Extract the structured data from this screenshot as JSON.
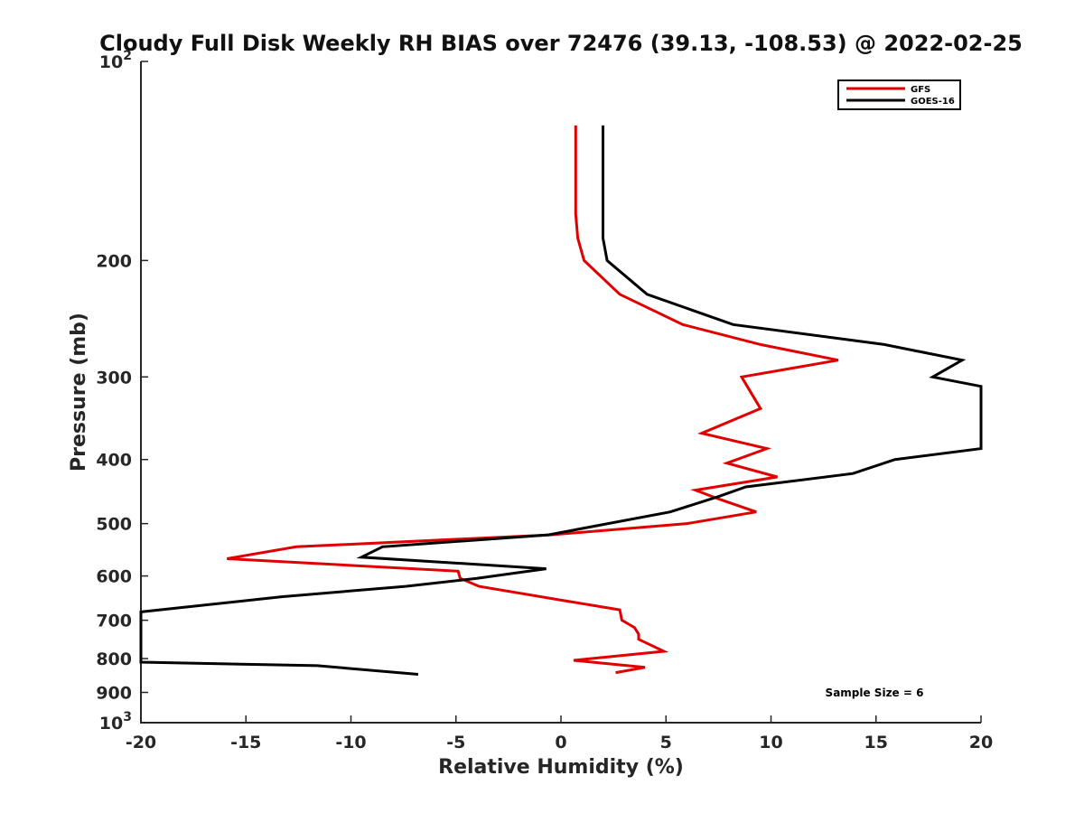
{
  "chart_data": {
    "type": "line",
    "title": "Cloudy Full Disk Weekly RH BIAS over 72476 (39.13, -108.53) @ 2022-02-25",
    "xlabel": "Relative Humidity (%)",
    "ylabel": "Pressure (mb)",
    "xlim": [
      -20,
      20
    ],
    "ylim": [
      100,
      1000
    ],
    "yscale": "log",
    "y_reversed": true,
    "grid": false,
    "legend_position": "top-right",
    "x_ticks": [
      "-20",
      "-15",
      "-10",
      "-5",
      "0",
      "5",
      "10",
      "15",
      "20"
    ],
    "y_ticks": [
      {
        "value": 100,
        "label": "10",
        "sup": "2"
      },
      {
        "value": 200,
        "label": "200"
      },
      {
        "value": 300,
        "label": "300"
      },
      {
        "value": 400,
        "label": "400"
      },
      {
        "value": 500,
        "label": "500"
      },
      {
        "value": 600,
        "label": "600"
      },
      {
        "value": 700,
        "label": "700"
      },
      {
        "value": 800,
        "label": "800"
      },
      {
        "value": 900,
        "label": "900"
      },
      {
        "value": 1000,
        "label": "10",
        "sup": "3"
      }
    ],
    "series": [
      {
        "name": "GFS",
        "color": "#e00000",
        "points": [
          [
            0.7,
            125
          ],
          [
            0.7,
            150
          ],
          [
            0.7,
            170
          ],
          [
            0.8,
            185
          ],
          [
            1.1,
            200
          ],
          [
            2.8,
            225
          ],
          [
            5.8,
            250
          ],
          [
            9.5,
            268
          ],
          [
            13.2,
            283
          ],
          [
            8.6,
            300
          ],
          [
            9.5,
            335
          ],
          [
            6.7,
            365
          ],
          [
            9.8,
            385
          ],
          [
            7.9,
            405
          ],
          [
            10.3,
            425
          ],
          [
            6.4,
            445
          ],
          [
            7.6,
            460
          ],
          [
            9.3,
            480
          ],
          [
            6.0,
            500
          ],
          [
            -0.5,
            520
          ],
          [
            -12.6,
            542
          ],
          [
            -15.9,
            565
          ],
          [
            -4.9,
            590
          ],
          [
            -4.8,
            605
          ],
          [
            -3.9,
            622
          ],
          [
            0.3,
            655
          ],
          [
            2.8,
            675
          ],
          [
            2.9,
            700
          ],
          [
            3.5,
            718
          ],
          [
            3.7,
            735
          ],
          [
            3.7,
            748
          ],
          [
            4.9,
            780
          ],
          [
            0.6,
            805
          ],
          [
            4.0,
            825
          ],
          [
            2.6,
            840
          ]
        ]
      },
      {
        "name": "GOES-16",
        "color": "#000000",
        "points": [
          [
            2.0,
            125
          ],
          [
            2.0,
            150
          ],
          [
            2.0,
            185
          ],
          [
            2.2,
            200
          ],
          [
            4.1,
            225
          ],
          [
            8.2,
            250
          ],
          [
            15.4,
            268
          ],
          [
            19.1,
            283
          ],
          [
            17.7,
            300
          ],
          [
            20.0,
            310
          ],
          [
            20.0,
            385
          ],
          [
            15.9,
            400
          ],
          [
            13.9,
            420
          ],
          [
            8.8,
            440
          ],
          [
            7.5,
            455
          ],
          [
            5.2,
            480
          ],
          [
            -0.6,
            520
          ],
          [
            -8.5,
            542
          ],
          [
            -9.5,
            562
          ],
          [
            -0.7,
            585
          ],
          [
            -4.0,
            605
          ],
          [
            -7.4,
            622
          ],
          [
            -13.3,
            645
          ],
          [
            -20.0,
            680
          ],
          [
            -20.0,
            810
          ],
          [
            -11.6,
            820
          ],
          [
            -6.8,
            845
          ]
        ]
      }
    ],
    "annotation": "Sample Size = 6"
  }
}
